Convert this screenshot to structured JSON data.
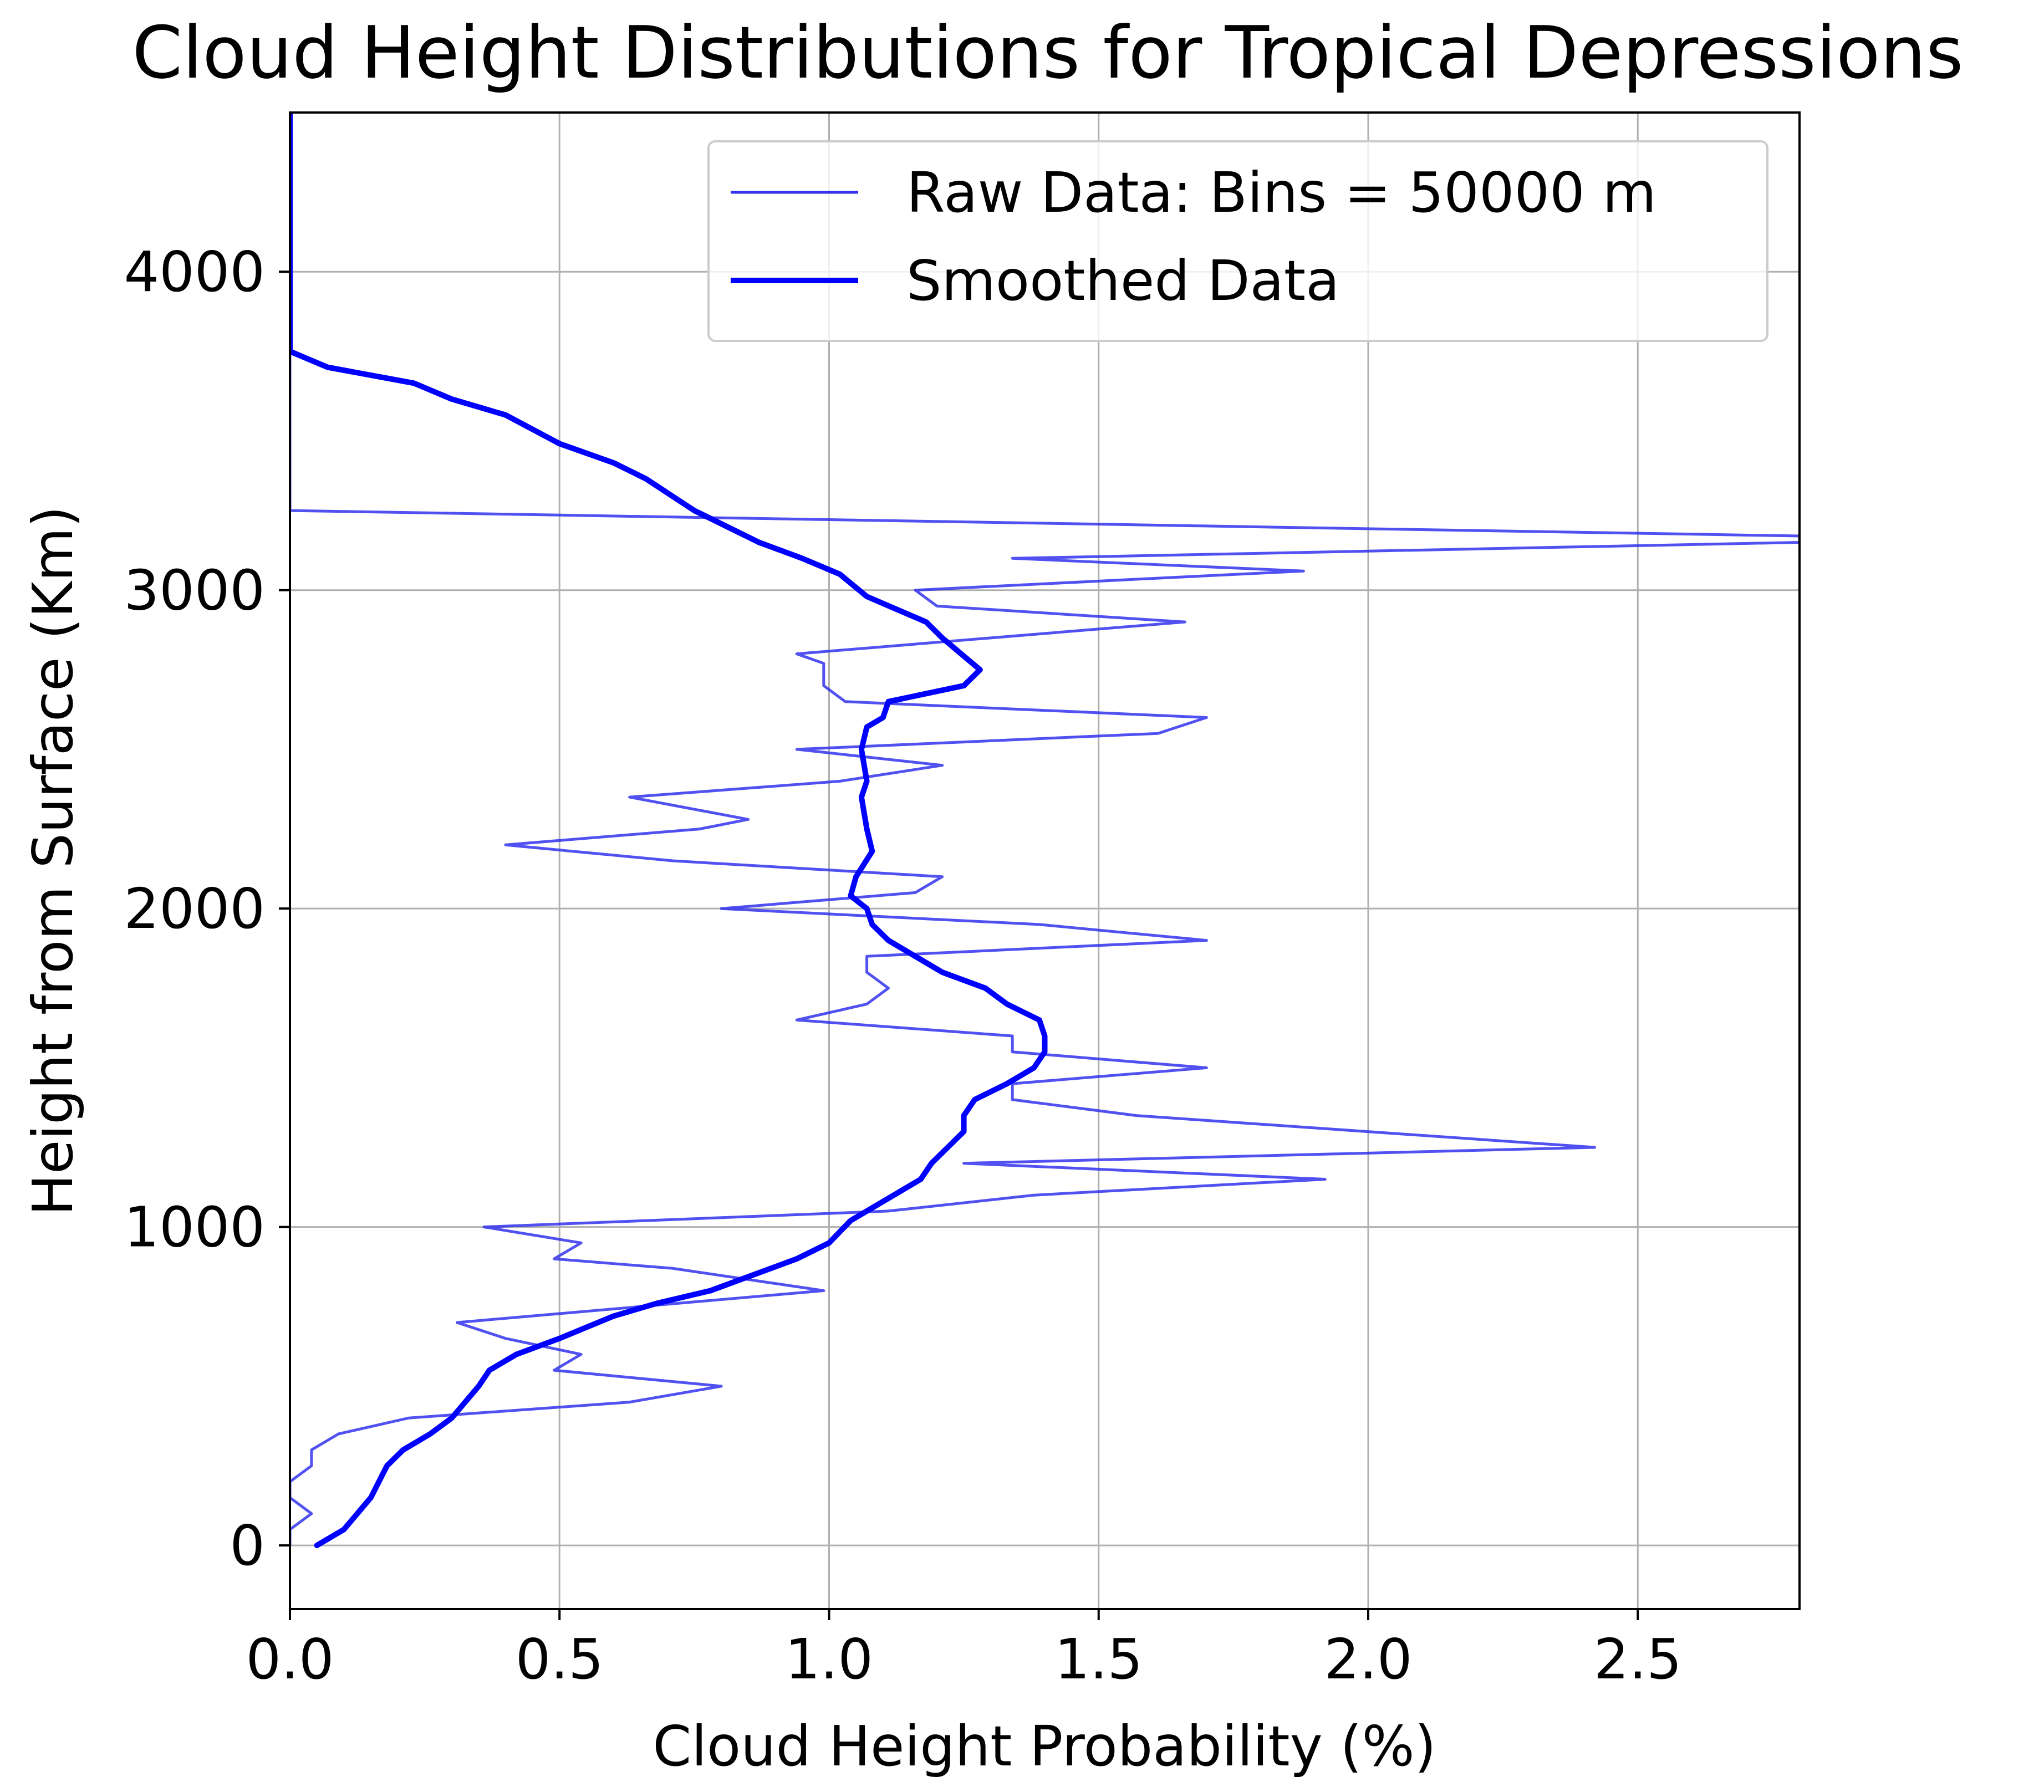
{
  "chart_data": {
    "type": "line",
    "title": "Cloud Height Distributions for Tropical Depressions",
    "xlabel": "Cloud Height Probability (%)",
    "ylabel": "Height from Surface (Km)",
    "xlim": [
      0.0,
      2.8
    ],
    "ylim": [
      -200,
      4500
    ],
    "xticks": [
      0.0,
      0.5,
      1.0,
      1.5,
      2.0,
      2.5
    ],
    "xtick_labels": [
      "0.0",
      "0.5",
      "1.0",
      "1.5",
      "2.0",
      "2.5"
    ],
    "yticks": [
      0,
      1000,
      2000,
      3000,
      4000
    ],
    "ytick_labels": [
      "0",
      "1000",
      "2000",
      "3000",
      "4000"
    ],
    "grid": true,
    "legend_position": "top-right",
    "series": [
      {
        "name": "Raw Data: Bins = 50000 m",
        "color": "#3333ee",
        "style": "thin",
        "points": [
          [
            0.0,
            4500
          ],
          [
            0.0,
            3250
          ],
          [
            2.8,
            3170
          ],
          [
            2.8,
            3150
          ],
          [
            1.34,
            3100
          ],
          [
            1.88,
            3060
          ],
          [
            1.16,
            3000
          ],
          [
            1.2,
            2950
          ],
          [
            1.66,
            2900
          ],
          [
            0.94,
            2800
          ],
          [
            0.99,
            2770
          ],
          [
            0.99,
            2700
          ],
          [
            1.03,
            2650
          ],
          [
            1.7,
            2600
          ],
          [
            1.61,
            2550
          ],
          [
            0.94,
            2500
          ],
          [
            1.21,
            2450
          ],
          [
            1.02,
            2400
          ],
          [
            0.63,
            2350
          ],
          [
            0.85,
            2280
          ],
          [
            0.76,
            2250
          ],
          [
            0.4,
            2200
          ],
          [
            0.71,
            2150
          ],
          [
            1.21,
            2100
          ],
          [
            1.16,
            2050
          ],
          [
            0.8,
            2000
          ],
          [
            1.39,
            1950
          ],
          [
            1.7,
            1900
          ],
          [
            1.07,
            1850
          ],
          [
            1.07,
            1800
          ],
          [
            1.11,
            1750
          ],
          [
            1.07,
            1700
          ],
          [
            0.94,
            1650
          ],
          [
            1.34,
            1600
          ],
          [
            1.34,
            1550
          ],
          [
            1.7,
            1500
          ],
          [
            1.34,
            1450
          ],
          [
            1.34,
            1400
          ],
          [
            1.57,
            1350
          ],
          [
            2.42,
            1250
          ],
          [
            1.25,
            1200
          ],
          [
            1.92,
            1150
          ],
          [
            1.38,
            1100
          ],
          [
            1.11,
            1050
          ],
          [
            0.36,
            1000
          ],
          [
            0.54,
            950
          ],
          [
            0.49,
            900
          ],
          [
            0.71,
            870
          ],
          [
            0.99,
            800
          ],
          [
            0.31,
            700
          ],
          [
            0.4,
            650
          ],
          [
            0.54,
            600
          ],
          [
            0.49,
            550
          ],
          [
            0.8,
            500
          ],
          [
            0.63,
            450
          ],
          [
            0.22,
            400
          ],
          [
            0.09,
            350
          ],
          [
            0.04,
            300
          ],
          [
            0.04,
            250
          ],
          [
            0.0,
            200
          ],
          [
            0.0,
            150
          ],
          [
            0.04,
            100
          ],
          [
            0.0,
            50
          ],
          [
            0.0,
            0
          ]
        ]
      },
      {
        "name": "Smoothed Data",
        "color": "#0000ff",
        "style": "thick",
        "points": [
          [
            0.0,
            4500
          ],
          [
            0.0,
            3750
          ],
          [
            0.07,
            3700
          ],
          [
            0.23,
            3650
          ],
          [
            0.3,
            3600
          ],
          [
            0.4,
            3550
          ],
          [
            0.5,
            3460
          ],
          [
            0.6,
            3400
          ],
          [
            0.66,
            3350
          ],
          [
            0.75,
            3250
          ],
          [
            0.87,
            3150
          ],
          [
            0.95,
            3100
          ],
          [
            1.02,
            3050
          ],
          [
            1.07,
            2980
          ],
          [
            1.18,
            2900
          ],
          [
            1.21,
            2850
          ],
          [
            1.28,
            2750
          ],
          [
            1.25,
            2700
          ],
          [
            1.11,
            2650
          ],
          [
            1.1,
            2600
          ],
          [
            1.07,
            2570
          ],
          [
            1.06,
            2500
          ],
          [
            1.07,
            2400
          ],
          [
            1.06,
            2350
          ],
          [
            1.07,
            2250
          ],
          [
            1.08,
            2180
          ],
          [
            1.05,
            2100
          ],
          [
            1.04,
            2040
          ],
          [
            1.07,
            2000
          ],
          [
            1.08,
            1950
          ],
          [
            1.11,
            1900
          ],
          [
            1.21,
            1800
          ],
          [
            1.29,
            1750
          ],
          [
            1.33,
            1700
          ],
          [
            1.39,
            1650
          ],
          [
            1.4,
            1600
          ],
          [
            1.4,
            1550
          ],
          [
            1.38,
            1500
          ],
          [
            1.33,
            1450
          ],
          [
            1.27,
            1400
          ],
          [
            1.25,
            1350
          ],
          [
            1.25,
            1300
          ],
          [
            1.22,
            1250
          ],
          [
            1.19,
            1200
          ],
          [
            1.17,
            1150
          ],
          [
            1.1,
            1080
          ],
          [
            1.04,
            1020
          ],
          [
            1.0,
            950
          ],
          [
            0.94,
            900
          ],
          [
            0.86,
            850
          ],
          [
            0.78,
            800
          ],
          [
            0.68,
            760
          ],
          [
            0.6,
            720
          ],
          [
            0.5,
            650
          ],
          [
            0.42,
            600
          ],
          [
            0.37,
            550
          ],
          [
            0.35,
            500
          ],
          [
            0.3,
            400
          ],
          [
            0.26,
            350
          ],
          [
            0.21,
            300
          ],
          [
            0.18,
            250
          ],
          [
            0.15,
            150
          ],
          [
            0.1,
            50
          ],
          [
            0.05,
            0
          ]
        ]
      }
    ]
  }
}
